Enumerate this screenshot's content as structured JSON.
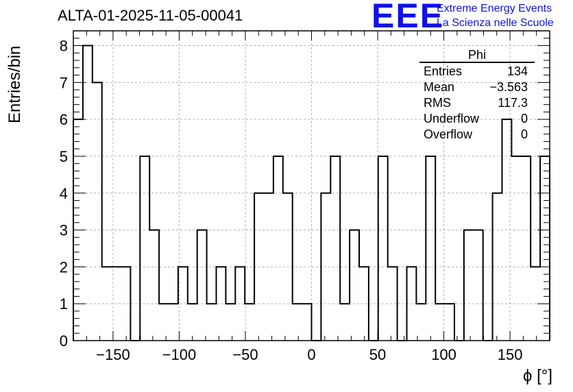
{
  "chart_data": {
    "type": "histogram",
    "title": "ALTA-01-2025-11-05-00041",
    "xlabel": "ϕ [°]",
    "ylabel": "Entries/bin",
    "xlim": [
      -180,
      180
    ],
    "ylim": [
      0,
      8.4
    ],
    "bin_width": 7.2,
    "xticks": [
      -150,
      -100,
      -50,
      0,
      50,
      100,
      150
    ],
    "yticks": [
      0,
      1,
      2,
      3,
      4,
      5,
      6,
      7,
      8
    ],
    "grid": true,
    "values": [
      6,
      8,
      7,
      2,
      2,
      2,
      0,
      5,
      3,
      1,
      1,
      2,
      1,
      3,
      1,
      2,
      1,
      2,
      1,
      4,
      4,
      5,
      4,
      1,
      1,
      0,
      4,
      5,
      1,
      3,
      2,
      0,
      5,
      2,
      0,
      2,
      1,
      5,
      1,
      1,
      0,
      3,
      3,
      0,
      4,
      6,
      5,
      5,
      2,
      5
    ],
    "stats": {
      "name": "Phi",
      "entries": "134",
      "mean": "−3.563",
      "rms": "117.3",
      "underflow": "0",
      "overflow": "0"
    }
  },
  "stats_labels": {
    "entries": "Entries",
    "mean": "Mean",
    "rms": "RMS",
    "underflow": "Underflow",
    "overflow": "Overflow"
  },
  "logo": {
    "mark": "EEE",
    "line1": "Extreme Energy Events",
    "line2": "La Scienza nelle Scuole",
    "color": "#1010e8"
  }
}
